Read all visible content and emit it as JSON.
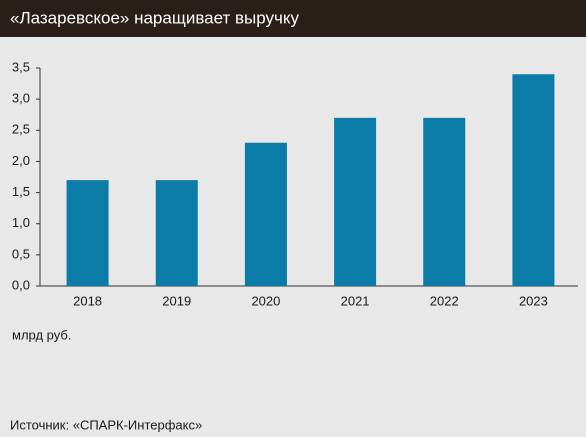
{
  "chart_data": {
    "type": "bar",
    "title": "«Лазаревское» наращивает выручку",
    "categories": [
      "2018",
      "2019",
      "2020",
      "2021",
      "2022",
      "2023"
    ],
    "values": [
      1.7,
      1.7,
      2.3,
      2.7,
      2.7,
      3.4
    ],
    "color": "#0b7ca8",
    "ylim": [
      0,
      3.5
    ],
    "yticks": [
      {
        "value": 0,
        "label": "0,0"
      },
      {
        "value": 0.5,
        "label": "0,5"
      },
      {
        "value": 1,
        "label": "1,0"
      },
      {
        "value": 1.5,
        "label": "1,5"
      },
      {
        "value": 2,
        "label": "2,0"
      },
      {
        "value": 2.5,
        "label": "2,5"
      },
      {
        "value": 3,
        "label": "3,0"
      },
      {
        "value": 3.5,
        "label": "3,5"
      }
    ],
    "grid": false,
    "unit_label": "млрд руб.",
    "source": "Источник: «СПАРК-Интерфакс»"
  }
}
